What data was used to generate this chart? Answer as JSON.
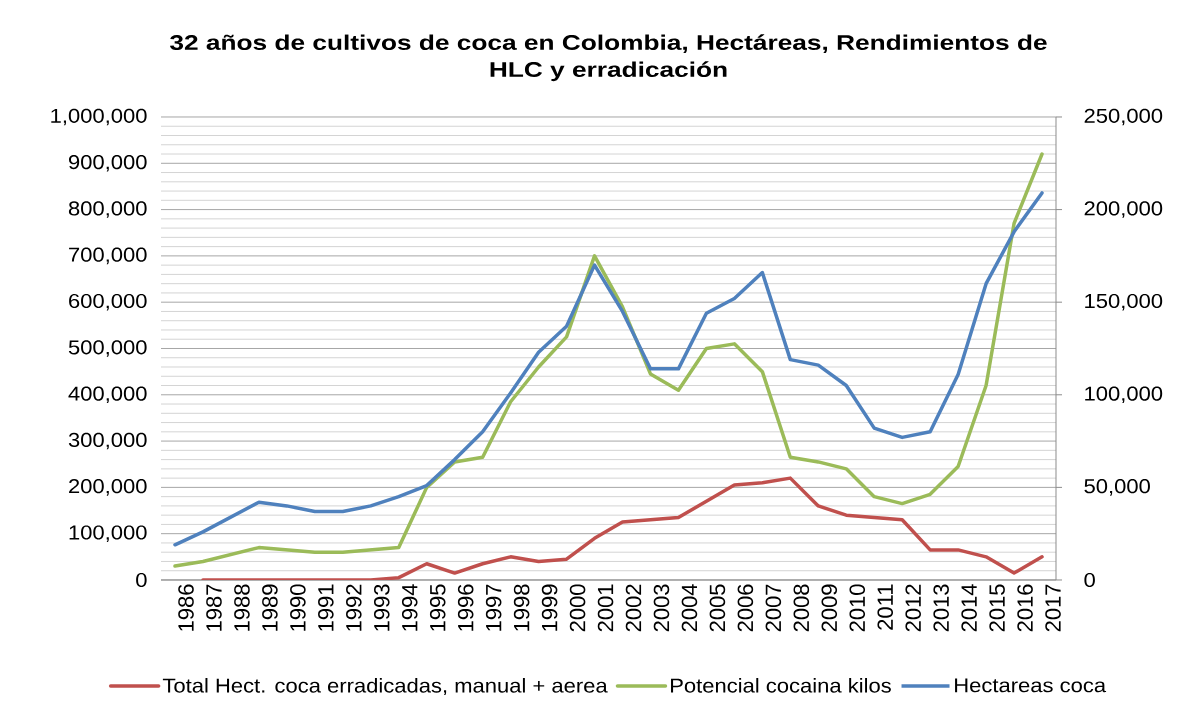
{
  "chart_data": {
    "type": "line",
    "title": "32 años de cultivos de coca en Colombia, Hectáreas, Rendimientos de HLC y erradicación",
    "categories": [
      "1986",
      "1987",
      "1988",
      "1989",
      "1990",
      "1991",
      "1992",
      "1993",
      "1994",
      "1995",
      "1996",
      "1997",
      "1998",
      "1999",
      "2000",
      "2001",
      "2002",
      "2003",
      "2004",
      "2005",
      "2006",
      "2007",
      "2008",
      "2009",
      "2010",
      "2011",
      "2012",
      "2013",
      "2014",
      "2015",
      "2016",
      "2017"
    ],
    "series": [
      {
        "name": "Total Hect. coca erradicadas, manual + aerea",
        "color": "#c0504d",
        "values": [
          null,
          0,
          0,
          0,
          0,
          0,
          0,
          0,
          5000,
          35000,
          15000,
          35000,
          50000,
          40000,
          45000,
          90000,
          125000,
          130000,
          135000,
          170000,
          205000,
          210000,
          220000,
          160000,
          140000,
          135000,
          130000,
          65000,
          65000,
          50000,
          15000,
          50000
        ]
      },
      {
        "name": "Potencial cocaina kilos",
        "color": "#9bbb59",
        "values": [
          30000,
          40000,
          55000,
          70000,
          65000,
          60000,
          60000,
          65000,
          70000,
          200000,
          255000,
          265000,
          385000,
          460000,
          525000,
          700000,
          590000,
          445000,
          410000,
          500000,
          510000,
          450000,
          265000,
          255000,
          240000,
          180000,
          165000,
          185000,
          245000,
          420000,
          770000,
          920000
        ]
      },
      {
        "name": "Hectareas coca",
        "color": "#4f81bd",
        "axis": "y2",
        "values": [
          19000,
          26000,
          34000,
          42000,
          40000,
          37000,
          37000,
          40000,
          45000,
          51000,
          65000,
          80000,
          101000,
          123000,
          137000,
          170000,
          145000,
          114000,
          114000,
          144000,
          152000,
          166000,
          119000,
          116000,
          105000,
          82000,
          77000,
          80000,
          111000,
          160000,
          188000,
          209000
        ]
      }
    ],
    "ylim": [
      0,
      1000000
    ],
    "yticks": [
      0,
      {
        "value": 100000,
        "label": "100,000"
      },
      {
        "value": 200000,
        "label": "200,000"
      },
      {
        "value": 300000,
        "label": "300,000"
      },
      {
        "value": 400000,
        "label": "400,000"
      },
      {
        "value": 500000,
        "label": "500,000"
      },
      {
        "value": 600000,
        "label": "600,000"
      },
      {
        "value": 700000,
        "label": "700,000"
      },
      {
        "value": 800000,
        "label": "800,000"
      },
      {
        "value": 900000,
        "label": "900,000"
      },
      {
        "value": 1000000,
        "label": "1,000,000"
      }
    ],
    "y2lim": [
      0,
      250000
    ],
    "y2ticks": [
      0,
      {
        "value": 50000,
        "label": "50,000"
      },
      {
        "value": 100000,
        "label": "100,000"
      },
      {
        "value": 150000,
        "label": "150,000"
      },
      {
        "value": 200000,
        "label": "200,000"
      },
      {
        "value": 250000,
        "label": "250,000"
      }
    ],
    "grid": "y",
    "legend": "bottom",
    "marker": "none",
    "line_style": "solid"
  }
}
